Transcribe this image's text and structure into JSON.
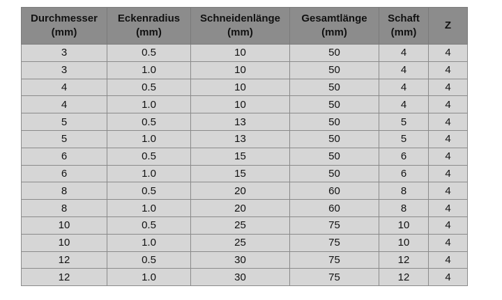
{
  "table": {
    "columns": [
      {
        "name": "Durchmesser",
        "unit": "(mm)"
      },
      {
        "name": "Eckenradius",
        "unit": "(mm)"
      },
      {
        "name": "Schneidenlänge",
        "unit": "(mm)"
      },
      {
        "name": "Gesamtlänge",
        "unit": "(mm)"
      },
      {
        "name": "Schaft",
        "unit": "(mm)"
      },
      {
        "name": "Z"
      }
    ],
    "rows": [
      [
        "3",
        "0.5",
        "10",
        "50",
        "4",
        "4"
      ],
      [
        "3",
        "1.0",
        "10",
        "50",
        "4",
        "4"
      ],
      [
        "4",
        "0.5",
        "10",
        "50",
        "4",
        "4"
      ],
      [
        "4",
        "1.0",
        "10",
        "50",
        "4",
        "4"
      ],
      [
        "5",
        "0.5",
        "13",
        "50",
        "5",
        "4"
      ],
      [
        "5",
        "1.0",
        "13",
        "50",
        "5",
        "4"
      ],
      [
        "6",
        "0.5",
        "15",
        "50",
        "6",
        "4"
      ],
      [
        "6",
        "1.0",
        "15",
        "50",
        "6",
        "4"
      ],
      [
        "8",
        "0.5",
        "20",
        "60",
        "8",
        "4"
      ],
      [
        "8",
        "1.0",
        "20",
        "60",
        "8",
        "4"
      ],
      [
        "10",
        "0.5",
        "25",
        "75",
        "10",
        "4"
      ],
      [
        "10",
        "1.0",
        "25",
        "75",
        "10",
        "4"
      ],
      [
        "12",
        "0.5",
        "30",
        "75",
        "12",
        "4"
      ],
      [
        "12",
        "1.0",
        "30",
        "75",
        "12",
        "4"
      ]
    ]
  }
}
